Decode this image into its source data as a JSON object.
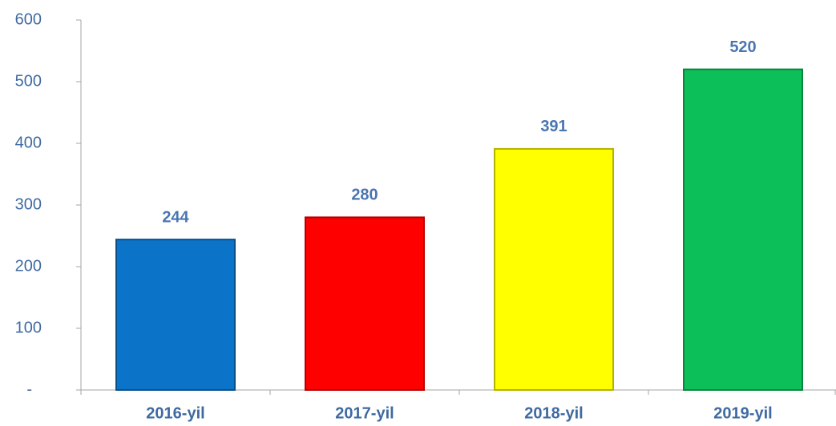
{
  "chart_data": {
    "type": "bar",
    "categories": [
      "2016-yil",
      "2017-yil",
      "2018-yil",
      "2019-yil"
    ],
    "values": [
      244,
      280,
      391,
      520
    ],
    "colors": [
      "#0b73c8",
      "#ff0000",
      "#ffff00",
      "#0dbf58"
    ],
    "ylim": [
      0,
      600
    ],
    "yticks": [
      {
        "value": 0,
        "label": "-"
      },
      100,
      200,
      300,
      400,
      500,
      600
    ],
    "grid": false
  }
}
